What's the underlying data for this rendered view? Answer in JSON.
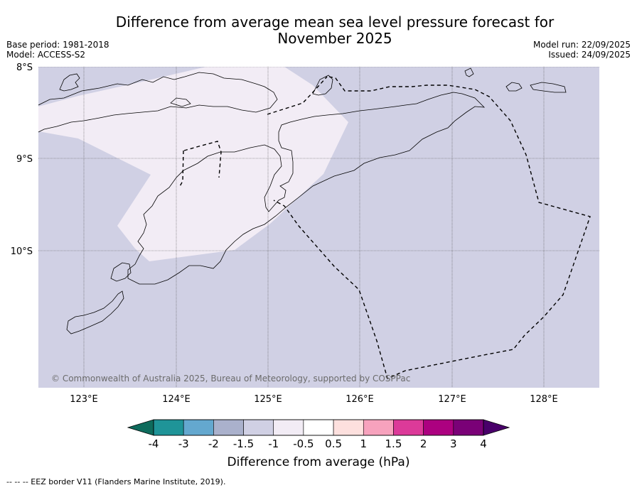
{
  "title_line1": "Difference from average mean sea level pressure forecast for",
  "title_line2": "November 2025",
  "base_period": "Base period: 1981-2018",
  "model": "Model: ACCESS-S2",
  "model_run": "Model run: 22/09/2025",
  "issued": "Issued: 24/09/2025",
  "lat_labels": [
    "8°S",
    "9°S",
    "10°S"
  ],
  "lon_labels": [
    "123°E",
    "124°E",
    "125°E",
    "126°E",
    "127°E",
    "128°E"
  ],
  "copyright": "© Commonwealth of Australia 2025, Bureau of Meteorology, supported by COSPPac",
  "colorbar": {
    "label": "Difference from average (hPa)",
    "ticks": [
      "-4",
      "-3",
      "-2",
      "-1.5",
      "-1",
      "-0.5",
      "0.5",
      "1",
      "1.5",
      "2",
      "3",
      "4"
    ],
    "colors": [
      "#0e6b5c",
      "#1f9498",
      "#64a8cf",
      "#aab1cc",
      "#d0d0e4",
      "#f2ecf5",
      "#ffffff",
      "#fde0de",
      "#f7a2bd",
      "#dc3a99",
      "#ac0180",
      "#7a0177",
      "#49006a"
    ]
  },
  "map_colors": {
    "background": "#d0d0e4",
    "region_light": "#f2ecf5"
  },
  "eez_note": "--  --  -- EEZ border V11 (Flanders Marine Institute, 2019)."
}
